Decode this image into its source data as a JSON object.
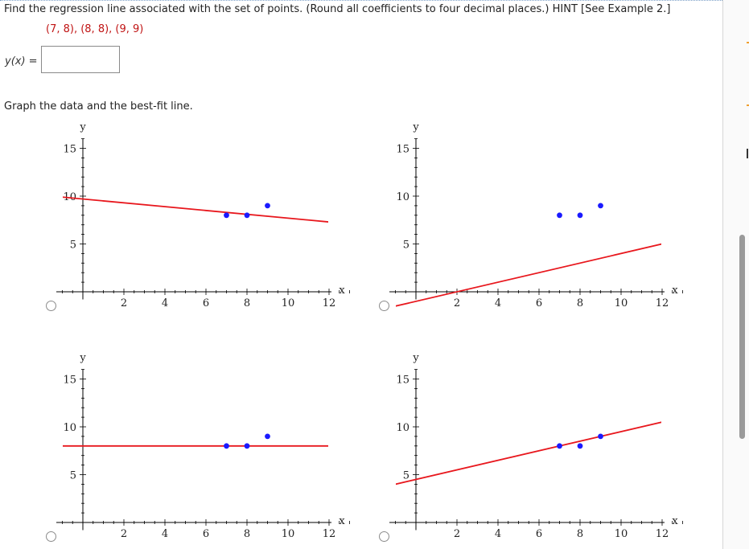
{
  "question": {
    "text": "Find the regression line associated with the set of points. (Round all coefficients to four decimal places.) HINT [See Example 2.]",
    "points": "(7, 8), (8, 8), (9, 9)"
  },
  "answer": {
    "label": "y(x) =",
    "value": ""
  },
  "graph_prompt": "Graph the data and the best-fit line.",
  "options": [
    {
      "selected": false
    },
    {
      "selected": false
    },
    {
      "selected": false
    },
    {
      "selected": false
    }
  ],
  "colors": {
    "points": "#1a1aff",
    "line": "#e8171d",
    "axes": "#000000",
    "accent_orange": "#f0a030"
  },
  "chart_data": [
    {
      "type": "scatter",
      "title": "",
      "xlabel": "x",
      "ylabel": "y",
      "xlim": [
        -1,
        13
      ],
      "ylim": [
        -1,
        16
      ],
      "x_ticks": [
        2,
        4,
        6,
        8,
        10,
        12
      ],
      "y_ticks": [
        5,
        10,
        15
      ],
      "points": [
        [
          7,
          8
        ],
        [
          8,
          8
        ],
        [
          9,
          9
        ]
      ],
      "line": {
        "slope": -0.2,
        "intercept": 9.7
      }
    },
    {
      "type": "scatter",
      "title": "",
      "xlabel": "x",
      "ylabel": "y",
      "xlim": [
        -1,
        13
      ],
      "ylim": [
        -1,
        16
      ],
      "x_ticks": [
        2,
        4,
        6,
        8,
        10,
        12
      ],
      "y_ticks": [
        5,
        10,
        15
      ],
      "points": [
        [
          7,
          8
        ],
        [
          8,
          8
        ],
        [
          9,
          9
        ]
      ],
      "line": {
        "slope": 0.5,
        "intercept": -1.0
      }
    },
    {
      "type": "scatter",
      "title": "",
      "xlabel": "x",
      "ylabel": "y",
      "xlim": [
        -1,
        13
      ],
      "ylim": [
        -1,
        16
      ],
      "x_ticks": [
        2,
        4,
        6,
        8,
        10,
        12
      ],
      "y_ticks": [
        5,
        10,
        15
      ],
      "points": [
        [
          7,
          8
        ],
        [
          8,
          8
        ],
        [
          9,
          9
        ]
      ],
      "line": {
        "slope": 0,
        "intercept": 8
      }
    },
    {
      "type": "scatter",
      "title": "",
      "xlabel": "x",
      "ylabel": "y",
      "xlim": [
        -1,
        13
      ],
      "ylim": [
        -1,
        16
      ],
      "x_ticks": [
        2,
        4,
        6,
        8,
        10,
        12
      ],
      "y_ticks": [
        5,
        10,
        15
      ],
      "points": [
        [
          7,
          8
        ],
        [
          8,
          8
        ],
        [
          9,
          9
        ]
      ],
      "line": {
        "slope": 0.5,
        "intercept": 4.5
      }
    }
  ]
}
